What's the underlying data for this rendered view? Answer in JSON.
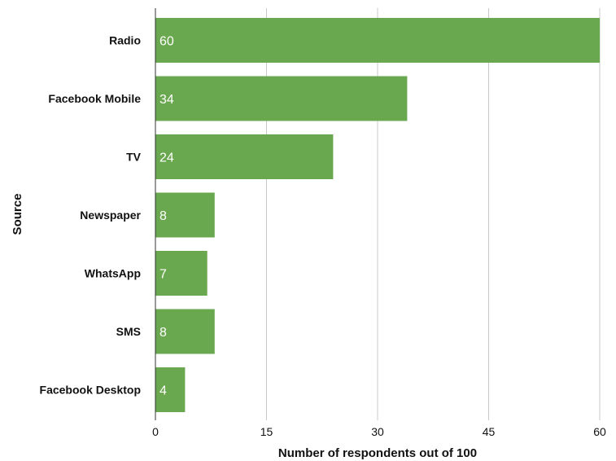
{
  "chart_data": {
    "type": "bar",
    "orientation": "horizontal",
    "categories": [
      "Radio",
      "Facebook Mobile",
      "TV",
      "Newspaper",
      "WhatsApp",
      "SMS",
      "Facebook Desktop"
    ],
    "values": [
      60,
      34,
      24,
      8,
      7,
      8,
      4
    ],
    "data_labels": [
      "60",
      "34",
      "24",
      "8",
      "7",
      "8",
      "4"
    ],
    "xlabel": "Number of respondents out of 100",
    "ylabel": "Source",
    "xlim": [
      0,
      60
    ],
    "xticks": [
      0,
      15,
      30,
      45,
      60
    ],
    "xtick_labels": [
      "0",
      "15",
      "30",
      "45",
      "60"
    ],
    "grid": "vertical",
    "legend": "none",
    "bar_color": "#6aa84f"
  }
}
